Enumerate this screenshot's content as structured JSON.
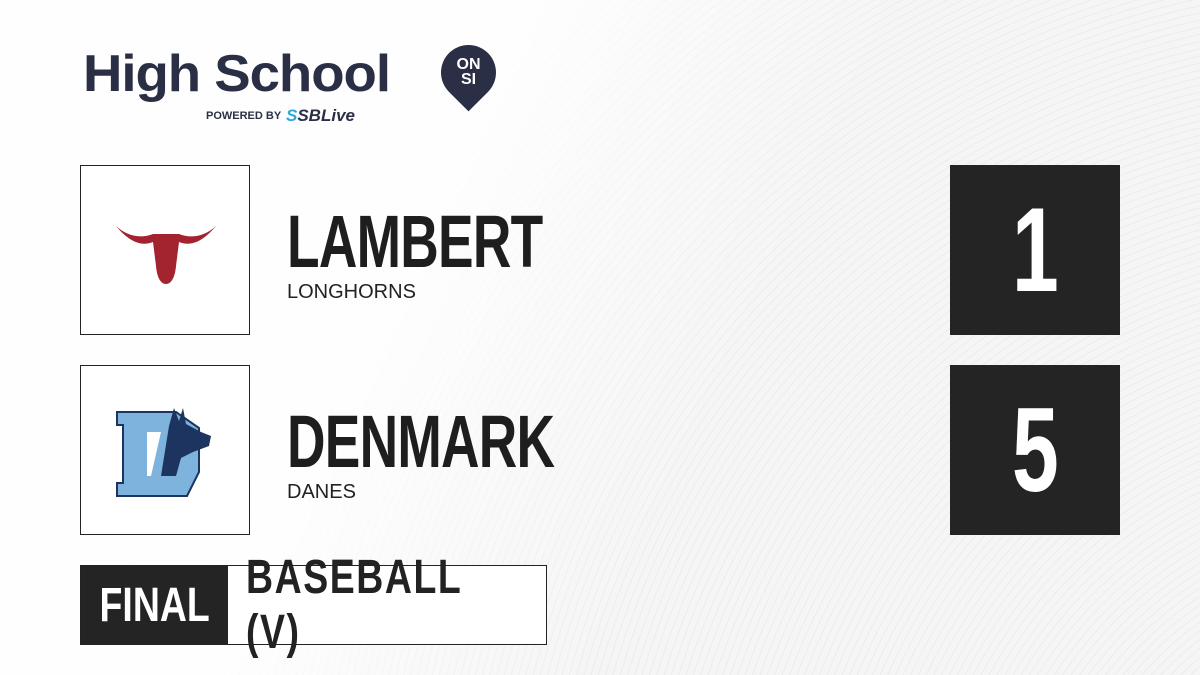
{
  "brand": {
    "title": "High School",
    "badge_top": "ON",
    "badge_bottom": "SI",
    "powered_by": "POWERED BY",
    "partner_prefix": "S",
    "partner": "SBLive"
  },
  "teams": [
    {
      "name": "LAMBERT",
      "mascot": "LONGHORNS",
      "score": "1",
      "logo_color": "#a3232f"
    },
    {
      "name": "DENMARK",
      "mascot": "DANES",
      "score": "5",
      "logo_color": "#7eb3dd"
    }
  ],
  "game": {
    "status": "FINAL",
    "sport": "BASEBALL (V)"
  }
}
